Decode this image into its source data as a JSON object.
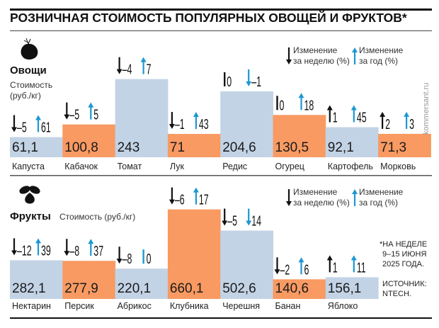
{
  "title": "РОЗНИЧНАЯ СТОИМОСТЬ ПОПУЛЯРНЫХ ОВОЩЕЙ И ФРУКТОВ*",
  "colors": {
    "blue_bar": "#c3d3e6",
    "orange_bar": "#f89a62",
    "week_arrow": "#111111",
    "year_arrow": "#1c98d2"
  },
  "legend": {
    "week_line1": "Изменение",
    "week_line2": "за неделю (%)",
    "year_line1": "Изменение",
    "year_line2": "за год (%)"
  },
  "vegetables": {
    "heading": "Овощи",
    "unit_line1": "Стоимость",
    "unit_line2": "(руб./кг)"
  },
  "fruits": {
    "heading": "Фрукты",
    "unit": "Стоимость (руб./кг)"
  },
  "footnote": {
    "line1": "*НА НЕДЕЛЕ",
    "line2": "9–15 ИЮНЯ",
    "line3": "2025 ГОДА.",
    "source1": "ИСТОЧНИК:",
    "source2": "NTECH."
  },
  "watermark": "kommersant.ru",
  "chart_data": [
    {
      "type": "bar",
      "title": "Овощи",
      "ylabel": "Стоимость (руб./кг)",
      "categories": [
        "Капуста",
        "Кабачок",
        "Томат",
        "Лук",
        "Редис",
        "Огурец",
        "Картофель",
        "Морковь"
      ],
      "values": [
        61.1,
        100.8,
        243,
        71,
        204.6,
        130.5,
        92.1,
        71.3
      ],
      "value_labels": [
        "61,1",
        "100,8",
        "243",
        "71",
        "204,6",
        "130,5",
        "92,1",
        "71,3"
      ],
      "bar_colors": [
        "blue",
        "orange",
        "blue",
        "orange",
        "blue",
        "orange",
        "blue",
        "orange"
      ],
      "week_change": [
        {
          "dir": "down",
          "label": "–5"
        },
        {
          "dir": "down",
          "label": "–5"
        },
        {
          "dir": "down",
          "label": "–4"
        },
        {
          "dir": "down",
          "label": "–1"
        },
        {
          "dir": "flat",
          "label": "0"
        },
        {
          "dir": "flat",
          "label": "0"
        },
        {
          "dir": "up",
          "label": "1"
        },
        {
          "dir": "up",
          "label": "2"
        }
      ],
      "year_change": [
        {
          "dir": "up",
          "label": "61"
        },
        {
          "dir": "up",
          "label": "5"
        },
        {
          "dir": "up",
          "label": "7"
        },
        {
          "dir": "up",
          "label": "43"
        },
        {
          "dir": "down",
          "label": "–1"
        },
        {
          "dir": "up",
          "label": "18"
        },
        {
          "dir": "up",
          "label": "45"
        },
        {
          "dir": "up",
          "label": "3"
        }
      ]
    },
    {
      "type": "bar",
      "title": "Фрукты",
      "ylabel": "Стоимость (руб./кг)",
      "categories": [
        "Нектарин",
        "Персик",
        "Абрикос",
        "Клубника",
        "Черешня",
        "Банан",
        "Яблоко"
      ],
      "values": [
        282.1,
        277.9,
        220.1,
        660.1,
        502.6,
        140.6,
        156.1
      ],
      "value_labels": [
        "282,1",
        "277,9",
        "220,1",
        "660,1",
        "502,6",
        "140,6",
        "156,1"
      ],
      "bar_colors": [
        "blue",
        "orange",
        "blue",
        "orange",
        "blue",
        "orange",
        "blue"
      ],
      "week_change": [
        {
          "dir": "down",
          "label": "–12"
        },
        {
          "dir": "down",
          "label": "–8"
        },
        {
          "dir": "down",
          "label": "–8"
        },
        {
          "dir": "down",
          "label": "–6"
        },
        {
          "dir": "down",
          "label": "–5"
        },
        {
          "dir": "down",
          "label": "–2"
        },
        {
          "dir": "up",
          "label": "1"
        }
      ],
      "year_change": [
        {
          "dir": "up",
          "label": "39"
        },
        {
          "dir": "up",
          "label": "37"
        },
        {
          "dir": "flat",
          "label": "0"
        },
        {
          "dir": "up",
          "label": "17"
        },
        {
          "dir": "down",
          "label": "14"
        },
        {
          "dir": "up",
          "label": "6"
        },
        {
          "dir": "up",
          "label": "11"
        }
      ]
    }
  ]
}
